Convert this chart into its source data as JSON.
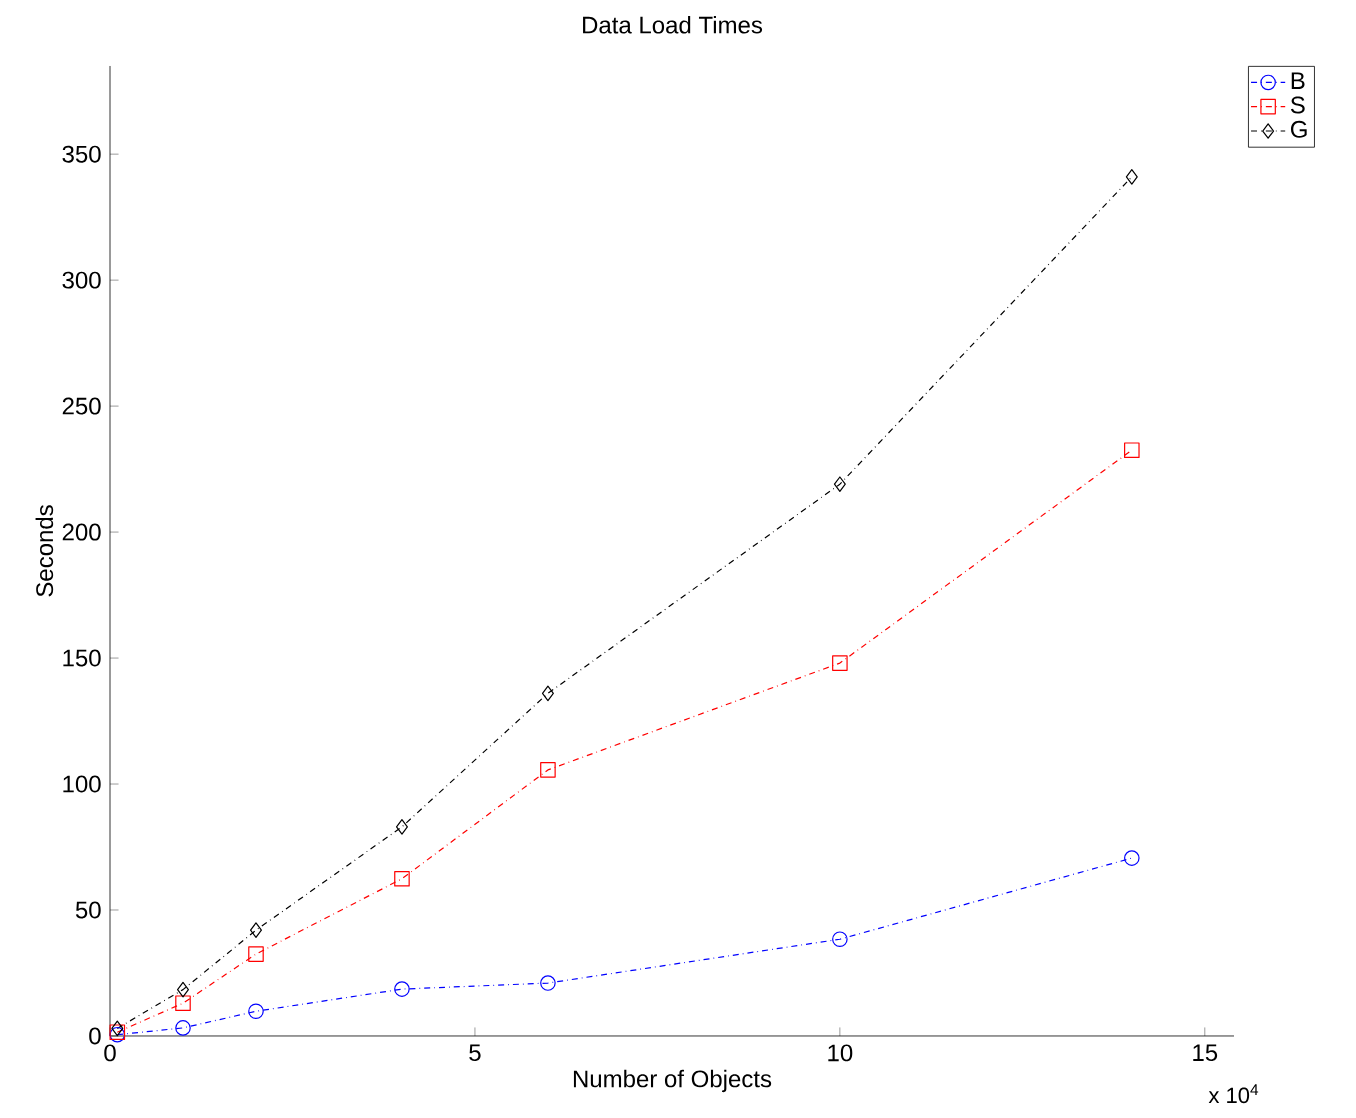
{
  "chart_data": {
    "type": "line",
    "title": "Data Load Times",
    "xlabel": "Number of Objects",
    "ylabel": "Seconds",
    "x": [
      0.1,
      1,
      2,
      4,
      6,
      10,
      14
    ],
    "series": [
      {
        "name": "B",
        "color": "#0000ff",
        "marker": "circle",
        "values": [
          0.5,
          3.2,
          9.8,
          18.6,
          21,
          38.4,
          70.6
        ]
      },
      {
        "name": "S",
        "color": "#ff0000",
        "marker": "square",
        "values": [
          1.5,
          13,
          32.5,
          62.4,
          105.6,
          148,
          232.5
        ]
      },
      {
        "name": "G",
        "color": "#000000",
        "marker": "diamond",
        "values": [
          3,
          18.4,
          42,
          83,
          136,
          219,
          341
        ]
      }
    ],
    "xlim": [
      0,
      15.4
    ],
    "ylim": [
      0,
      385
    ],
    "xticks": [
      0,
      5,
      10,
      15
    ],
    "yticks": [
      0,
      50,
      100,
      150,
      200,
      250,
      300,
      350
    ],
    "annotations": [
      "x 10$^{4}$"
    ],
    "line_style": "dashdot",
    "grid": false,
    "legend": "top right"
  }
}
